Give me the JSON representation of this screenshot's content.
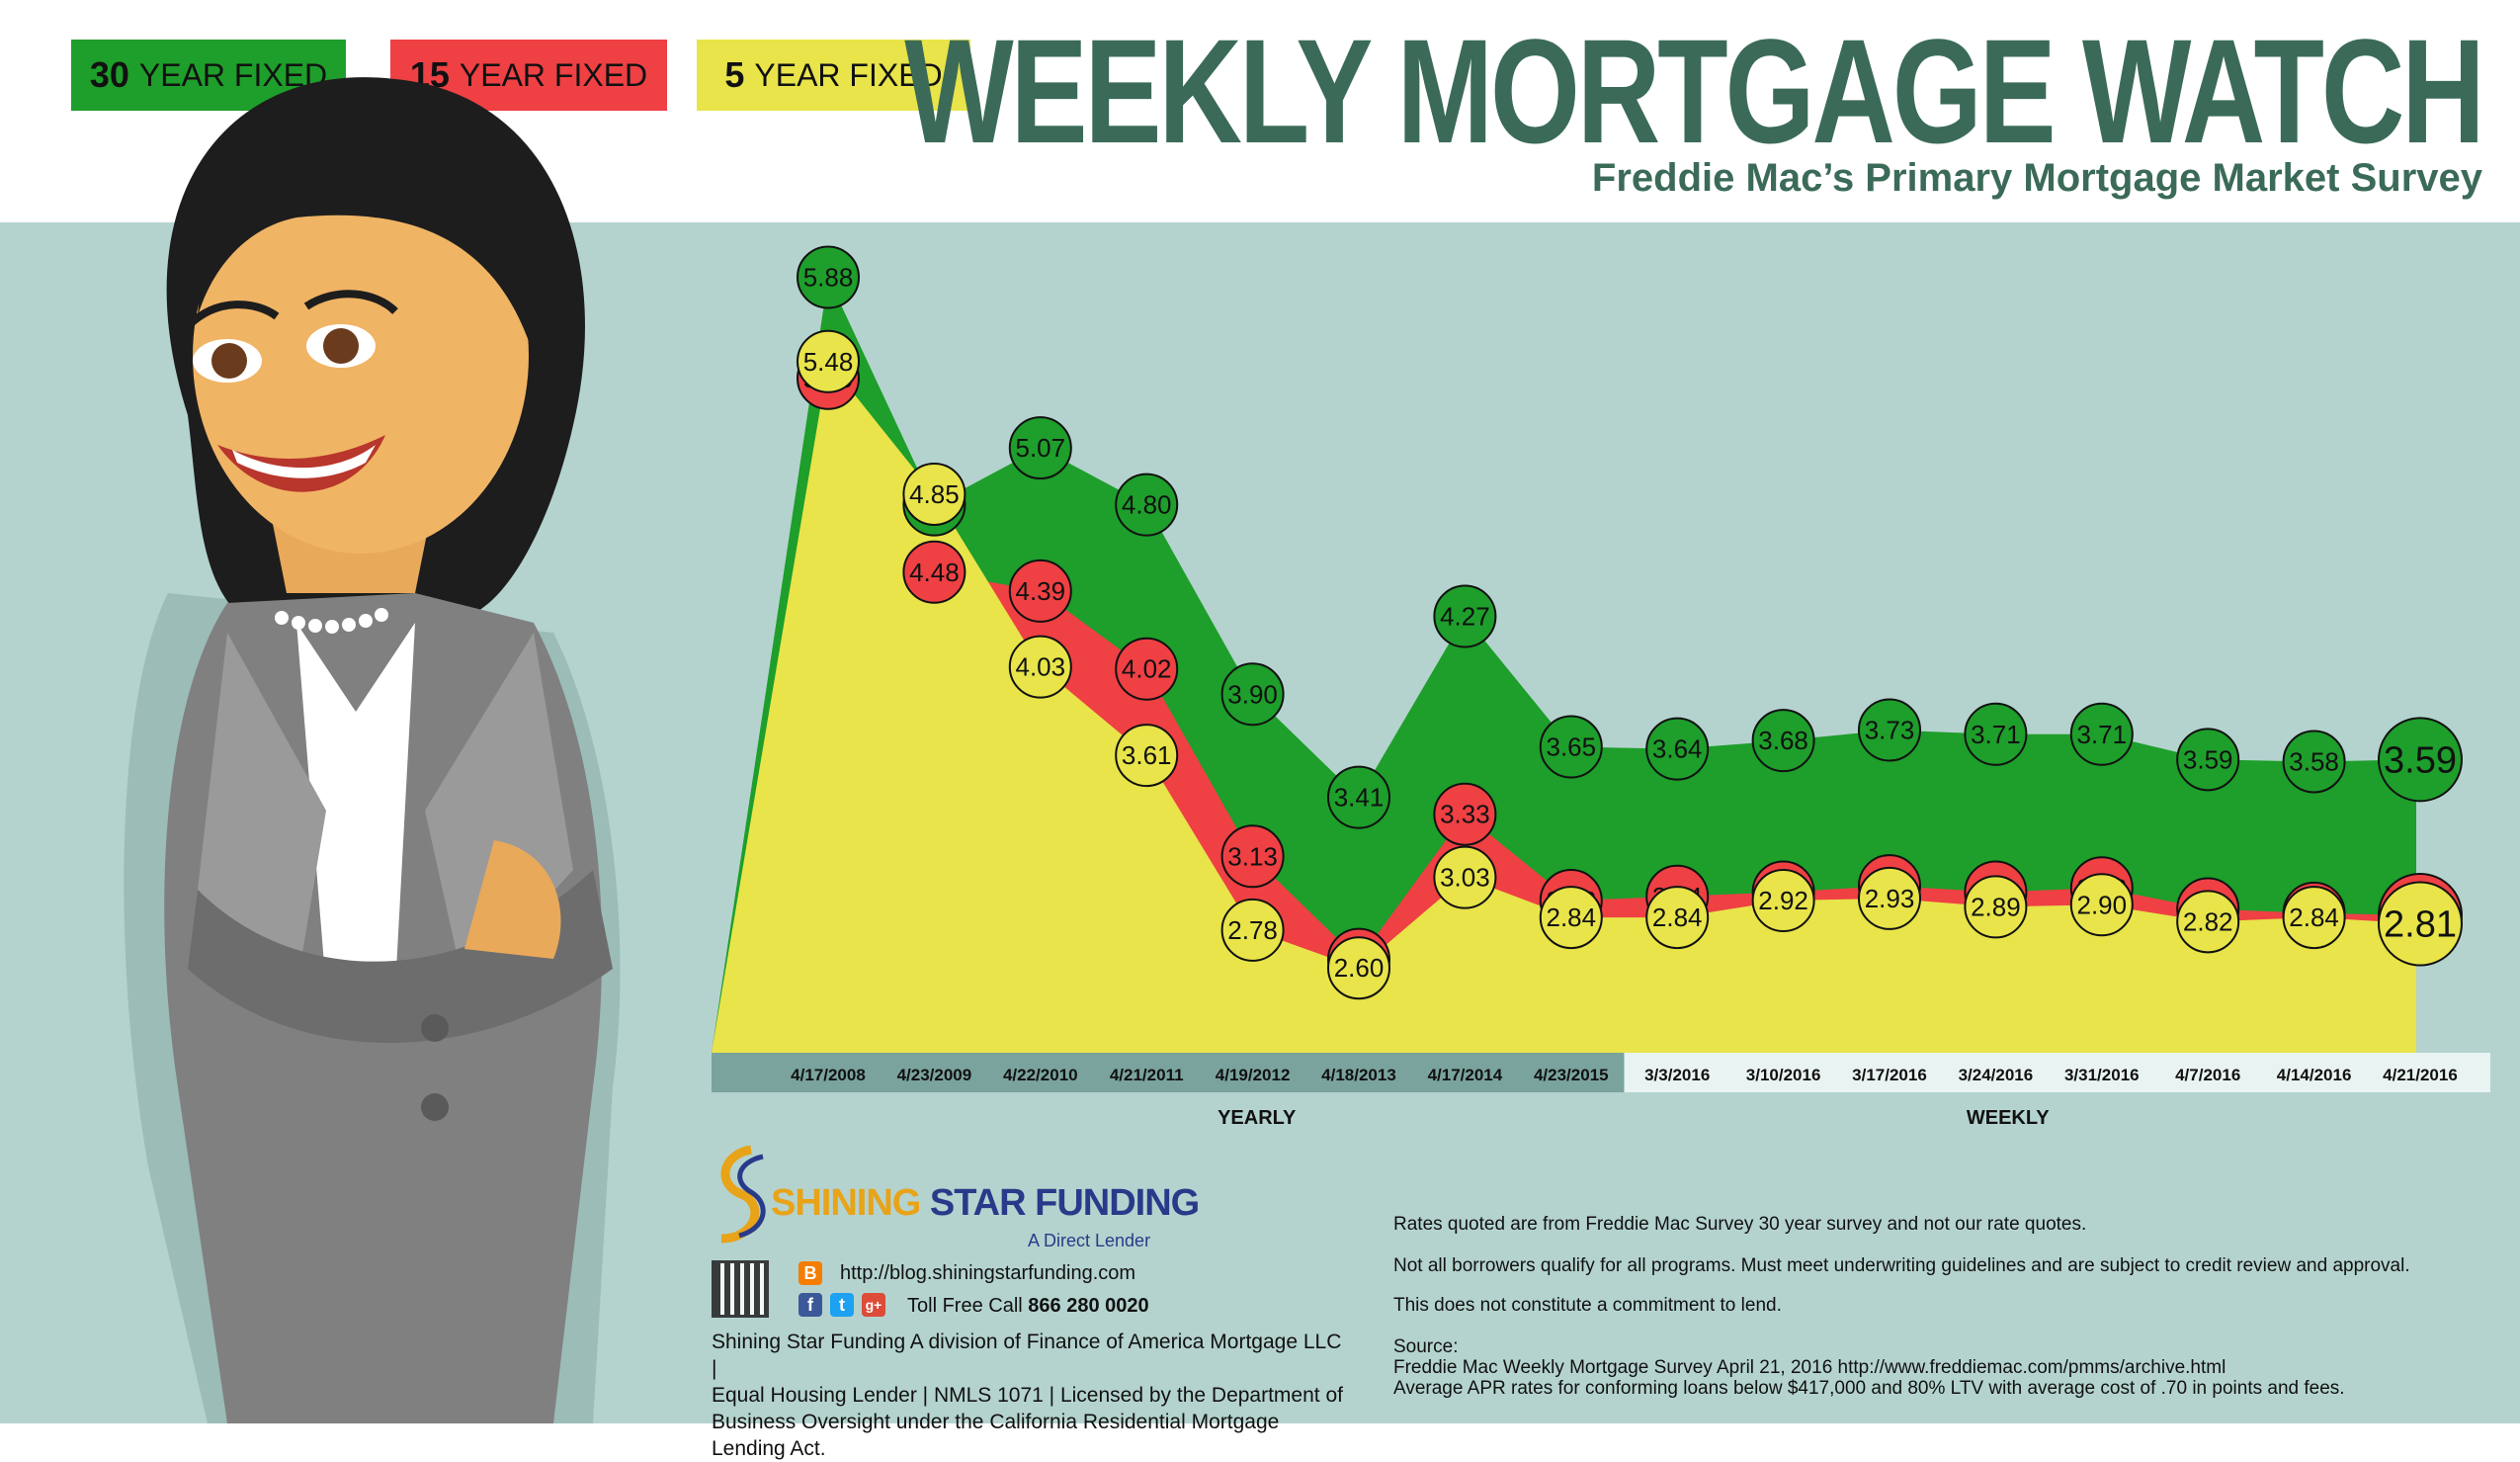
{
  "legend": [
    {
      "bold": "30",
      "label": "YEAR FIXED",
      "color": "#1e9e2b"
    },
    {
      "bold": "15",
      "label": "YEAR FIXED",
      "color": "#ef4044"
    },
    {
      "bold": "5",
      "label": "YEAR FIXED",
      "color": "#e8e44a"
    }
  ],
  "header": {
    "title": "WEEKLY MORTGAGE WATCH",
    "subtitle": "Freddie Mac’s Primary Mortgage Market Survey"
  },
  "chart_data": {
    "type": "area",
    "categories": [
      "4/17/2008",
      "4/23/2009",
      "4/22/2010",
      "4/21/2011",
      "4/19/2012",
      "4/18/2013",
      "4/17/2014",
      "4/23/2015",
      "3/3/2016",
      "3/10/2016",
      "3/17/2016",
      "3/24/2016",
      "3/31/2016",
      "4/7/2016",
      "4/14/2016",
      "4/21/2016"
    ],
    "series": [
      {
        "name": "30 YEAR FIXED",
        "color": "#1e9e2b",
        "values": [
          5.88,
          4.8,
          5.07,
          4.8,
          3.9,
          3.41,
          4.27,
          3.65,
          3.64,
          3.68,
          3.73,
          3.71,
          3.71,
          3.59,
          3.58,
          3.59
        ]
      },
      {
        "name": "15 YEAR FIXED",
        "color": "#ef4044",
        "values": [
          5.4,
          4.48,
          4.39,
          4.02,
          3.13,
          2.64,
          3.33,
          2.92,
          2.94,
          2.96,
          2.99,
          2.96,
          2.98,
          2.88,
          2.86,
          2.85
        ]
      },
      {
        "name": "5 YEAR FIXED",
        "color": "#e8e44a",
        "values": [
          5.48,
          4.85,
          4.03,
          3.61,
          2.78,
          2.6,
          3.03,
          2.84,
          2.84,
          2.92,
          2.93,
          2.89,
          2.9,
          2.82,
          2.84,
          2.81
        ]
      }
    ],
    "group_labels": [
      "YEARLY",
      "WEEKLY"
    ],
    "groups": {
      "yearly_count": 8,
      "weekly_count": 8
    }
  },
  "footer": {
    "company_name_a": "SHINING",
    "company_name_b": "STAR FUNDING",
    "tagline": "A Direct Lender",
    "blog": "http://blog.shiningstarfunding.com",
    "phone_prefix": "Toll Free Call",
    "phone": "866 280 0020",
    "company_lines": [
      "Shining Star Funding A division of Finance of America Mortgage LLC |",
      "Equal Housing Lender | NMLS 1071 | Licensed by the Department of",
      "Business Oversight under the California Residential Mortgage Lending Act."
    ],
    "notes": [
      "Rates quoted are from Freddie Mac Survey 30 year survey and not our rate quotes.",
      "Not all borrowers qualify for all programs. Must meet underwriting guidelines and are subject to credit review and approval.",
      "This does not constitute a commitment to lend.",
      "Source:",
      "Freddie Mac Weekly Mortgage Survey April 21, 2016 http://www.freddiemac.com/pmms/archive.html",
      "Average APR rates for conforming loans below $417,000 and 80% LTV with average cost of .70 in points and fees."
    ]
  },
  "colors": {
    "teal": "#b4d3ce",
    "title_green": "#3b6b58",
    "axis_dark": "#7aa39d",
    "axis_light": "#e9f4f2"
  }
}
